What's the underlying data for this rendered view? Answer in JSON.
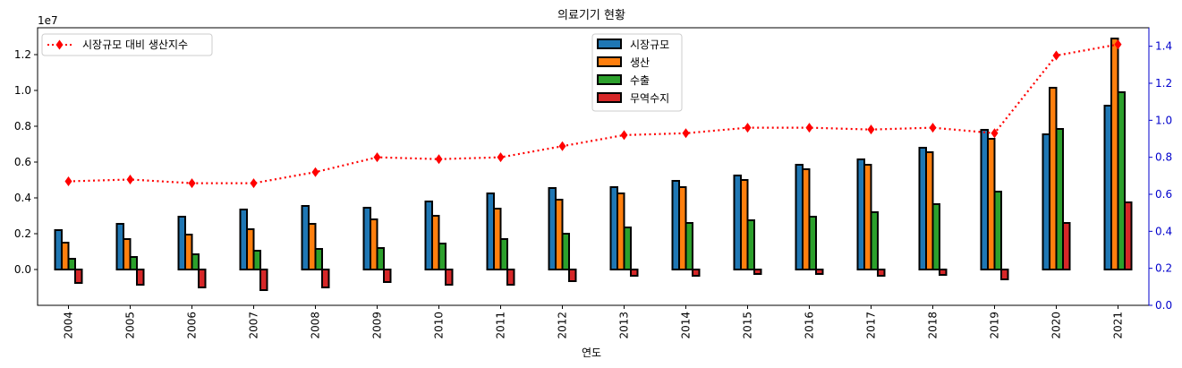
{
  "chart_data": {
    "type": "bar",
    "title": "의료기기 현황",
    "xlabel": "연도",
    "ylabel": "",
    "y_offset_label": "1e7",
    "y_scale": 10000000,
    "categories": [
      "2004",
      "2005",
      "2006",
      "2007",
      "2008",
      "2009",
      "2010",
      "2011",
      "2012",
      "2013",
      "2014",
      "2015",
      "2016",
      "2017",
      "2018",
      "2019",
      "2020",
      "2021"
    ],
    "ylim": [
      -0.2,
      1.35
    ],
    "yticks": [
      0.0,
      0.2,
      0.4,
      0.6,
      0.8,
      1.0,
      1.2
    ],
    "ytick_labels": [
      "0.0",
      "0.2",
      "0.4",
      "0.6",
      "0.8",
      "1.0",
      "1.2"
    ],
    "y2lim": [
      0,
      1.5
    ],
    "y2ticks": [
      0,
      0.2,
      0.4,
      0.6,
      0.8,
      1.0,
      1.2,
      1.4
    ],
    "y2tick_labels": [
      "0.0",
      "0.2",
      "0.4",
      "0.6",
      "0.8",
      "1.0",
      "1.2",
      "1.4"
    ],
    "series": [
      {
        "name": "시장규모",
        "color": "#1f77b4",
        "values": [
          0.22,
          0.255,
          0.295,
          0.335,
          0.355,
          0.345,
          0.38,
          0.425,
          0.455,
          0.46,
          0.495,
          0.525,
          0.585,
          0.615,
          0.68,
          0.78,
          0.755,
          0.915
        ]
      },
      {
        "name": "생산",
        "color": "#ff7f0e",
        "values": [
          0.15,
          0.17,
          0.195,
          0.225,
          0.255,
          0.28,
          0.3,
          0.34,
          0.39,
          0.425,
          0.46,
          0.5,
          0.56,
          0.585,
          0.655,
          0.73,
          1.015,
          1.29
        ]
      },
      {
        "name": "수출",
        "color": "#2ca02c",
        "values": [
          0.06,
          0.07,
          0.085,
          0.105,
          0.115,
          0.12,
          0.145,
          0.17,
          0.2,
          0.235,
          0.26,
          0.275,
          0.295,
          0.32,
          0.365,
          0.435,
          0.785,
          0.99
        ]
      },
      {
        "name": "무역수지",
        "color": "#d62728",
        "values": [
          -0.075,
          -0.085,
          -0.1,
          -0.115,
          -0.1,
          -0.07,
          -0.085,
          -0.085,
          -0.065,
          -0.035,
          -0.035,
          -0.025,
          -0.025,
          -0.035,
          -0.03,
          -0.055,
          0.26,
          0.375
        ]
      }
    ],
    "line_series": {
      "name": "시장규모 대비 생산지수",
      "color": "#ff0000",
      "axis": "right",
      "values": [
        0.67,
        0.68,
        0.66,
        0.66,
        0.72,
        0.8,
        0.79,
        0.8,
        0.86,
        0.92,
        0.93,
        0.96,
        0.96,
        0.95,
        0.96,
        0.93,
        1.35,
        1.41
      ]
    },
    "legend": {
      "bars": "upper center",
      "line": "upper left"
    },
    "grid": false
  }
}
